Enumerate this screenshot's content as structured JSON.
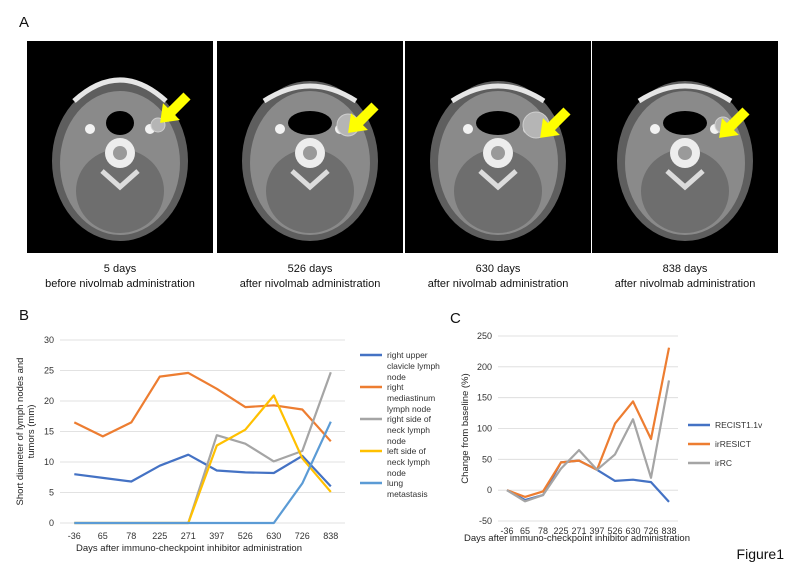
{
  "figure_label": "Figure1",
  "panel_a": {
    "letter": "A",
    "images": [
      {
        "line1": "5 days",
        "line2": "before nivolmab administration"
      },
      {
        "line1": "526 days",
        "line2": "after nivolmab administration"
      },
      {
        "line1": "630 days",
        "line2": "after nivolmab administration"
      },
      {
        "line1": "838 days",
        "line2": "after nivolmab administration"
      }
    ],
    "arrow_color": "#ffff00"
  },
  "panel_b": {
    "letter": "B"
  },
  "panel_c": {
    "letter": "C"
  },
  "chart_data": [
    {
      "type": "line",
      "panel": "B",
      "categories": [
        "-36",
        "65",
        "78",
        "225",
        "271",
        "397",
        "526",
        "630",
        "726",
        "838"
      ],
      "xlabel": "Days after immuno-checkpoint inhibitor administration",
      "ylabel": "Short diameter of lymph nodes and tumors (mm)",
      "ylim": [
        0,
        30
      ],
      "yticks": [
        0,
        5,
        10,
        15,
        20,
        25,
        30
      ],
      "grid": true,
      "legend_position": "right",
      "series": [
        {
          "name": "right upper clavicle lymph node",
          "color": "#4472c4",
          "values": [
            8.0,
            7.4,
            6.8,
            9.4,
            11.2,
            8.6,
            8.3,
            8.2,
            11.0,
            6.0
          ]
        },
        {
          "name": "right mediastinum lymph node",
          "color": "#ed7d31",
          "values": [
            16.5,
            14.2,
            16.5,
            24.0,
            24.6,
            22.0,
            19.0,
            19.3,
            18.6,
            13.4
          ]
        },
        {
          "name": "right side of neck lymph node",
          "color": "#a5a5a5",
          "values": [
            0,
            0,
            0,
            0,
            0,
            14.4,
            13.0,
            10.1,
            11.8,
            24.7
          ]
        },
        {
          "name": "left side of neck lymph node",
          "color": "#ffc000",
          "values": [
            0,
            0,
            0,
            0,
            0,
            12.7,
            15.3,
            20.9,
            10.6,
            5.1
          ]
        },
        {
          "name": "lung metastasis",
          "color": "#5b9bd5",
          "values": [
            0,
            0,
            0,
            0,
            0,
            0,
            0,
            0,
            6.5,
            16.6
          ]
        }
      ]
    },
    {
      "type": "line",
      "panel": "C",
      "categories": [
        "-36",
        "65",
        "78",
        "225",
        "271",
        "397",
        "526",
        "630",
        "726",
        "838"
      ],
      "xlabel": "Days after immuno-checkpoint inhibitor administration",
      "ylabel": "Change from baseline (%)",
      "ylim": [
        -50,
        250
      ],
      "yticks": [
        -50,
        0,
        50,
        100,
        150,
        200,
        250
      ],
      "grid": true,
      "legend_position": "right",
      "series": [
        {
          "name": "RECIST1.1v",
          "color": "#4472c4",
          "values": [
            0,
            -16,
            -8,
            45,
            48,
            33,
            15,
            17,
            13,
            -19
          ]
        },
        {
          "name": "irRESICT",
          "color": "#ed7d31",
          "values": [
            0,
            -11,
            -2,
            45,
            48,
            33,
            108,
            144,
            83,
            231
          ]
        },
        {
          "name": "irRC",
          "color": "#a5a5a5",
          "values": [
            0,
            -18,
            -8,
            35,
            65,
            33,
            58,
            115,
            20,
            178
          ]
        }
      ]
    }
  ]
}
